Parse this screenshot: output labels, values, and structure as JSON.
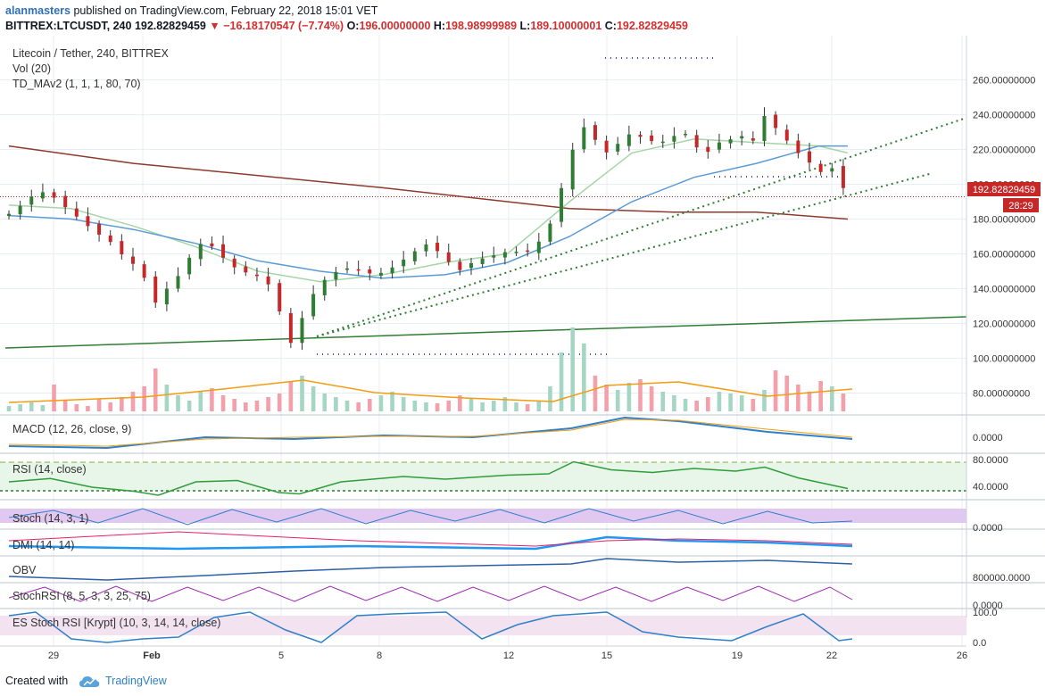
{
  "header": {
    "username": "alanmasters",
    "published_text": " published on TradingView.com, February 22, 2018 15:01 VET",
    "symbol": "BITTREX:LTCUSDT, 240",
    "last": "192.82829459",
    "change": "−16.18170547 (−7.74%)",
    "o_label": "O:",
    "o_value": "196.00000000",
    "h_label": "H:",
    "h_value": "198.98999989",
    "l_label": "L:",
    "l_value": "189.10000001",
    "c_label": "C:",
    "c_value": "192.82829459"
  },
  "legend": {
    "title": "Litecoin / Tether, 240, BITTREX",
    "vol": "Vol (20)",
    "td": "TD_MAv2 (1, 1, 1, 80, 70)"
  },
  "panes": {
    "macd": "MACD (12, 26, close, 9)",
    "rsi": "RSI (14, close)",
    "stoch": "Stoch (14, 3, 1)",
    "dmi": "DMI (14, 14)",
    "obv": "OBV",
    "stochrsi": "StochRSI (8, 5, 3, 3, 25, 75)",
    "esstoch": "ES Stoch RSI [Krypt] (10, 3, 14, 14, close)"
  },
  "pane_ticks": {
    "macd": "0.0000",
    "rsi_high": "80.0000",
    "rsi_low": "40.0000",
    "stoch": "0.0000",
    "obv": "800000.0000",
    "stochrsi": "0.0000",
    "es_high": "100.0",
    "es_low": "0.0"
  },
  "price_badge": "192.82829459",
  "timer_badge": "28:29",
  "footer": {
    "created_with": "Created with",
    "brand": "TradingView"
  },
  "colors": {
    "up": "#26a69a",
    "down": "#ef5350",
    "bull_candle": "#2e7d32",
    "bear_candle": "#c62828",
    "grid": "#e8eef6",
    "trend": "#2e7d32",
    "ma_slow": "#8d3a2c",
    "ma_blue": "#5b9bd5",
    "ma_green": "#a5d6a7",
    "accent": "#2f80c9"
  },
  "chart_data": {
    "type": "candlestick",
    "title": "Litecoin / Tether, 240, BITTREX",
    "x_ticks": [
      "29",
      "Feb",
      "5",
      "8",
      "12",
      "15",
      "19",
      "22",
      "26"
    ],
    "y_ticks": [
      "260.00000000",
      "240.00000000",
      "220.00000000",
      "200.00000000",
      "180.00000000",
      "160.00000000",
      "140.00000000",
      "120.00000000",
      "100.00000000",
      "80.00000000"
    ],
    "ylim": [
      70,
      270
    ],
    "close_path": [
      [
        0,
        183
      ],
      [
        6,
        188
      ],
      [
        12,
        194
      ],
      [
        18,
        196
      ],
      [
        24,
        190
      ],
      [
        30,
        184
      ],
      [
        36,
        178
      ],
      [
        42,
        172
      ],
      [
        48,
        168
      ],
      [
        54,
        160
      ],
      [
        60,
        154
      ],
      [
        66,
        145
      ],
      [
        72,
        128
      ],
      [
        76,
        140
      ],
      [
        82,
        148
      ],
      [
        88,
        160
      ],
      [
        94,
        168
      ],
      [
        100,
        162
      ],
      [
        106,
        154
      ],
      [
        112,
        150
      ],
      [
        118,
        148
      ],
      [
        124,
        145
      ],
      [
        130,
        128
      ],
      [
        136,
        108
      ],
      [
        140,
        120
      ],
      [
        146,
        136
      ],
      [
        152,
        145
      ],
      [
        158,
        150
      ],
      [
        164,
        152
      ],
      [
        170,
        150
      ],
      [
        176,
        148
      ],
      [
        182,
        150
      ],
      [
        188,
        155
      ],
      [
        194,
        160
      ],
      [
        200,
        166
      ],
      [
        206,
        162
      ],
      [
        212,
        155
      ],
      [
        218,
        150
      ],
      [
        224,
        156
      ],
      [
        230,
        158
      ],
      [
        236,
        160
      ],
      [
        242,
        162
      ],
      [
        248,
        160
      ],
      [
        254,
        165
      ],
      [
        260,
        175
      ],
      [
        264,
        190
      ],
      [
        268,
        205
      ],
      [
        272,
        222
      ],
      [
        276,
        234
      ],
      [
        282,
        226
      ],
      [
        288,
        218
      ],
      [
        294,
        224
      ],
      [
        300,
        230
      ],
      [
        306,
        226
      ],
      [
        312,
        224
      ],
      [
        318,
        225
      ],
      [
        324,
        232
      ],
      [
        330,
        222
      ],
      [
        336,
        218
      ],
      [
        342,
        224
      ],
      [
        348,
        226
      ],
      [
        354,
        228
      ],
      [
        360,
        224
      ],
      [
        364,
        240
      ],
      [
        368,
        234
      ],
      [
        374,
        226
      ],
      [
        380,
        218
      ],
      [
        386,
        212
      ],
      [
        392,
        206
      ],
      [
        396,
        210
      ],
      [
        400,
        202
      ],
      [
        404,
        192.8
      ]
    ],
    "ma_slow": [
      [
        0,
        222
      ],
      [
        60,
        212
      ],
      [
        120,
        205
      ],
      [
        180,
        198
      ],
      [
        240,
        190
      ],
      [
        270,
        186
      ],
      [
        320,
        184
      ],
      [
        360,
        184
      ],
      [
        404,
        180
      ]
    ],
    "ma_blue": [
      [
        0,
        182
      ],
      [
        30,
        180
      ],
      [
        60,
        174
      ],
      [
        90,
        166
      ],
      [
        120,
        156
      ],
      [
        150,
        150
      ],
      [
        180,
        146
      ],
      [
        210,
        148
      ],
      [
        240,
        155
      ],
      [
        270,
        170
      ],
      [
        300,
        190
      ],
      [
        330,
        204
      ],
      [
        360,
        212
      ],
      [
        390,
        222
      ],
      [
        404,
        222
      ]
    ],
    "ma_green": [
      [
        0,
        188
      ],
      [
        30,
        186
      ],
      [
        60,
        176
      ],
      [
        90,
        164
      ],
      [
        120,
        150
      ],
      [
        150,
        144
      ],
      [
        180,
        148
      ],
      [
        210,
        155
      ],
      [
        240,
        160
      ],
      [
        270,
        190
      ],
      [
        300,
        218
      ],
      [
        330,
        226
      ],
      [
        360,
        224
      ],
      [
        390,
        222
      ],
      [
        404,
        218
      ]
    ],
    "volume_heights": [
      6,
      8,
      10,
      7,
      30,
      12,
      8,
      6,
      14,
      10,
      16,
      22,
      28,
      48,
      30,
      18,
      12,
      22,
      26,
      18,
      14,
      10,
      12,
      16,
      20,
      34,
      40,
      28,
      20,
      16,
      12,
      10,
      14,
      18,
      22,
      16,
      12,
      10,
      9,
      12,
      18,
      14,
      10,
      12,
      16,
      10,
      8,
      12,
      28,
      66,
      94,
      76,
      40,
      30,
      24,
      32,
      36,
      28,
      22,
      18,
      14,
      12,
      16,
      22,
      20,
      18,
      14,
      24,
      46,
      40,
      30,
      22,
      34,
      28,
      20
    ],
    "rsi": [
      [
        0,
        50
      ],
      [
        20,
        55
      ],
      [
        40,
        42
      ],
      [
        60,
        36
      ],
      [
        72,
        30
      ],
      [
        90,
        50
      ],
      [
        110,
        52
      ],
      [
        130,
        34
      ],
      [
        140,
        32
      ],
      [
        160,
        50
      ],
      [
        190,
        58
      ],
      [
        210,
        54
      ],
      [
        240,
        60
      ],
      [
        260,
        62
      ],
      [
        272,
        80
      ],
      [
        290,
        68
      ],
      [
        310,
        64
      ],
      [
        330,
        70
      ],
      [
        350,
        66
      ],
      [
        364,
        72
      ],
      [
        380,
        56
      ],
      [
        404,
        40
      ]
    ]
  }
}
